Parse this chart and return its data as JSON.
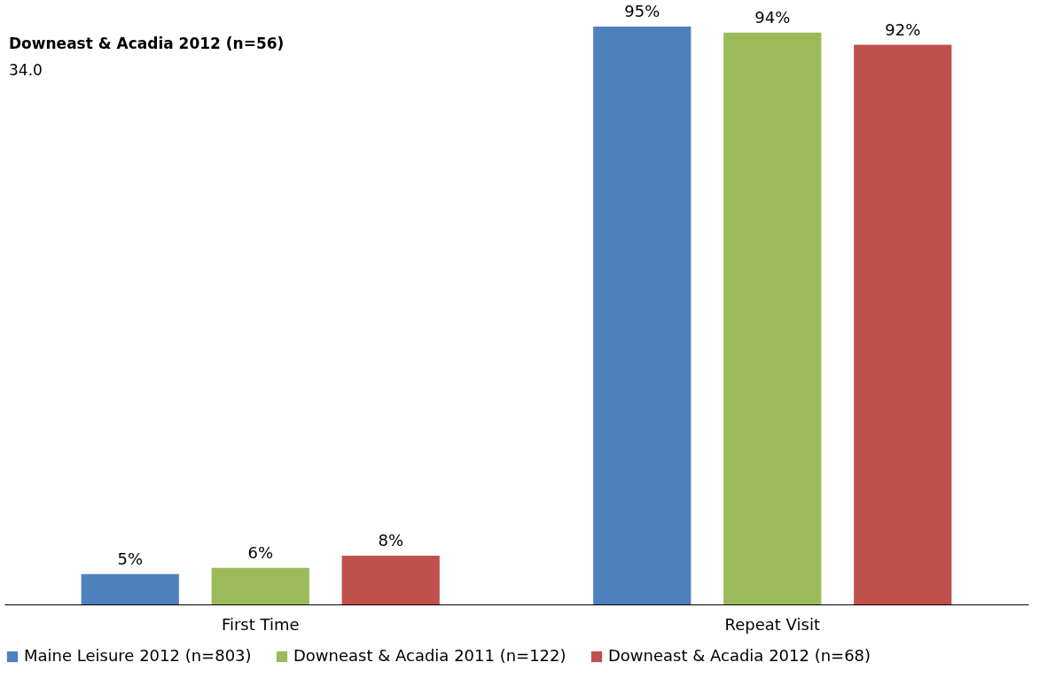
{
  "chart_data": {
    "type": "bar",
    "categories": [
      "First Time",
      "Repeat Visit"
    ],
    "series": [
      {
        "name": "Maine Leisure 2012 (n=803)",
        "color": "#4f81bd",
        "values": [
          5,
          95
        ],
        "value_labels": [
          "5%",
          "95%"
        ]
      },
      {
        "name": "Downeast & Acadia 2011 (n=122)",
        "color": "#9bbb59",
        "values": [
          6,
          94
        ],
        "value_labels": [
          "6%",
          "94%"
        ]
      },
      {
        "name": "Downeast & Acadia 2012 (n=68)",
        "color": "#c0504d",
        "values": [
          8,
          92
        ],
        "value_labels": [
          "8%",
          "92%"
        ]
      }
    ],
    "tick_labels": "x",
    "grid": false,
    "legend": "bottom",
    "annotations": [
      "Downeast & Acadia 2012 (n=56)",
      "34.0"
    ]
  }
}
